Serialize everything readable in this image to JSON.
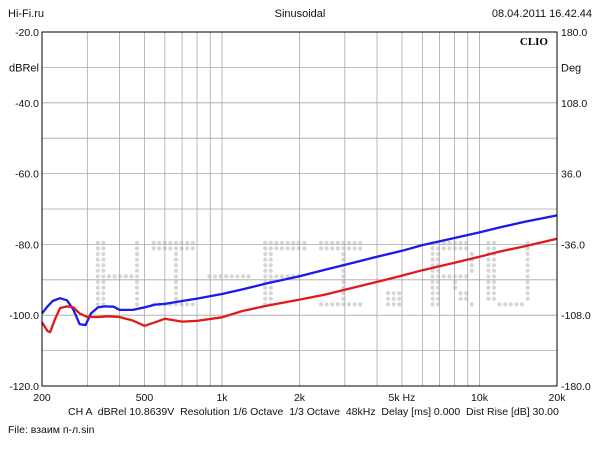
{
  "header": {
    "site": "Hi-Fi.ru",
    "mode": "Sinusoidal",
    "datetime": "08.04.2011 16.42.44"
  },
  "brand": "CLIO",
  "watermark": "HI-FI.RU",
  "colors": {
    "grid": "#a8a8a8",
    "axis": "#000000",
    "series1": "#1a1aee",
    "series2": "#e01a1a",
    "watermark": "#d6d6d6"
  },
  "footer": {
    "line1": "CH A  dBRel 10.8639V  Resolution 1/6 Octave  1/3 Octave  48kHz  Delay [ms] 0.000  Dist Rise [dB] 30.00",
    "line2": "File: взаим п-л.sin"
  },
  "chart_data": {
    "type": "line",
    "xscale": "log",
    "xlim": [
      200,
      20000
    ],
    "ylim": [
      -120,
      -20
    ],
    "y2lim": [
      -180,
      180
    ],
    "ylabel": "dBRel",
    "y2label": "Deg",
    "x_ticks": [
      {
        "value": 200,
        "label": "200"
      },
      {
        "value": 500,
        "label": "500"
      },
      {
        "value": 1000,
        "label": "1k"
      },
      {
        "value": 2000,
        "label": "2k"
      },
      {
        "value": 5000,
        "label": "5k Hz"
      },
      {
        "value": 10000,
        "label": "10k"
      },
      {
        "value": 20000,
        "label": "20k"
      }
    ],
    "y_ticks": [
      {
        "value": -20,
        "label": "-20.0"
      },
      {
        "value": -40,
        "label": "-40.0"
      },
      {
        "value": -60,
        "label": "-60.0"
      },
      {
        "value": -80,
        "label": "-80.0"
      },
      {
        "value": -100,
        "label": "-100.0"
      },
      {
        "value": -120,
        "label": "-120.0"
      }
    ],
    "y2_ticks": [
      {
        "value": 180,
        "label": "180.0"
      },
      {
        "value": 108,
        "label": "108.0"
      },
      {
        "value": 36,
        "label": "36.0"
      },
      {
        "value": -36,
        "label": "-36.0"
      },
      {
        "value": -108,
        "label": "-108.0"
      },
      {
        "value": -180,
        "label": "-180.0"
      }
    ],
    "series": [
      {
        "color": "#1a1aee",
        "x": [
          200,
          210,
          220,
          235,
          250,
          265,
          280,
          295,
          310,
          330,
          350,
          380,
          400,
          450,
          500,
          550,
          600,
          700,
          800,
          1000,
          1200,
          1500,
          2000,
          2500,
          3000,
          4000,
          5000,
          6000,
          8000,
          10000,
          12000,
          15000,
          20000
        ],
        "y": [
          -99.5,
          -97.5,
          -96,
          -95.2,
          -95.8,
          -98.5,
          -102.5,
          -102.8,
          -99.5,
          -97.8,
          -97.5,
          -97.6,
          -98.5,
          -98.5,
          -97.8,
          -97,
          -96.8,
          -96,
          -95.3,
          -94,
          -92.7,
          -91,
          -89,
          -87.2,
          -85.8,
          -83.5,
          -81.8,
          -80.2,
          -78.2,
          -76.6,
          -75.2,
          -73.6,
          -71.8
        ]
      },
      {
        "color": "#e01a1a",
        "x": [
          200,
          210,
          215,
          225,
          235,
          250,
          265,
          280,
          300,
          330,
          360,
          400,
          450,
          500,
          550,
          600,
          700,
          800,
          1000,
          1200,
          1500,
          2000,
          2500,
          3000,
          4000,
          5000,
          6000,
          8000,
          10000,
          12000,
          15000,
          20000
        ],
        "y": [
          -102,
          -104.5,
          -104.8,
          -101,
          -98,
          -97.5,
          -97.8,
          -99.5,
          -100.5,
          -100.5,
          -100.3,
          -100.5,
          -101.5,
          -103,
          -102,
          -101,
          -101.8,
          -101.6,
          -100.6,
          -98.8,
          -97.3,
          -95.6,
          -94.2,
          -92.8,
          -90.6,
          -88.8,
          -87.3,
          -85.2,
          -83.5,
          -82,
          -80.5,
          -78.4
        ]
      }
    ]
  }
}
